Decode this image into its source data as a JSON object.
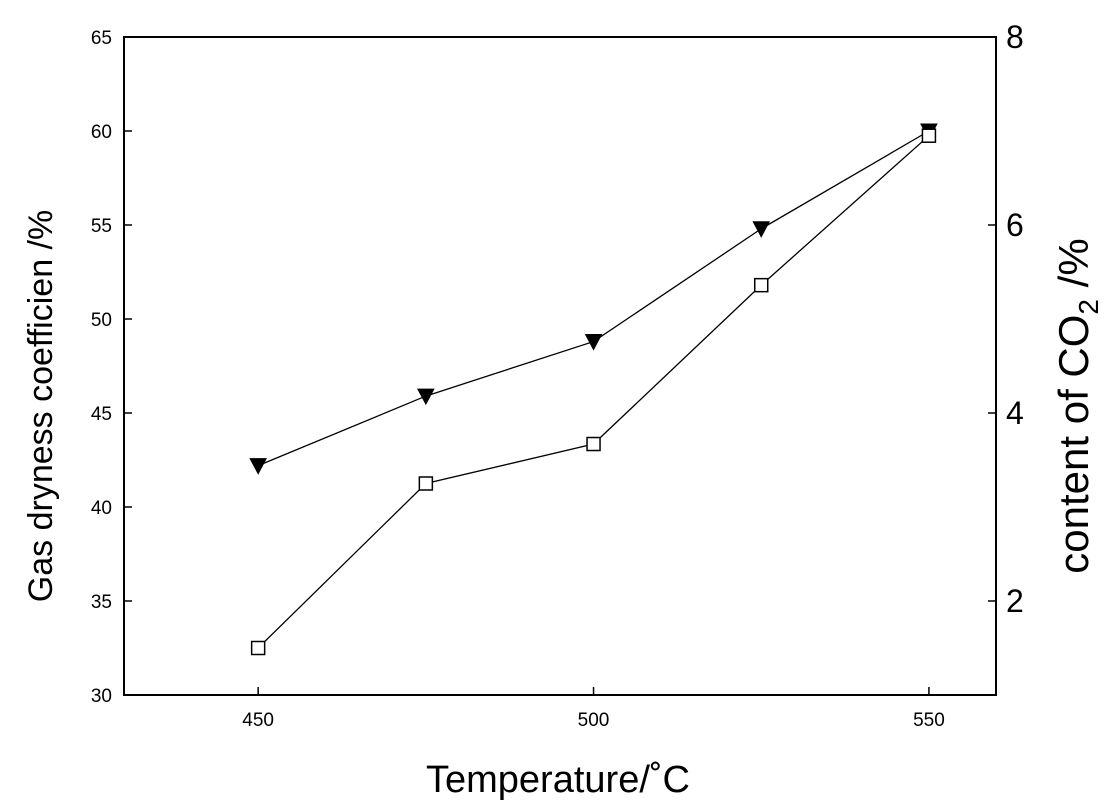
{
  "chart_data": {
    "type": "line",
    "title": "",
    "xlabel": "Temperature/˚C",
    "ylabel_left": "Gas dryness coefficien /%",
    "ylabel_right": {
      "prefix": "content of CO",
      "subscript": "2",
      "suffix": " /%"
    },
    "xlim": [
      430,
      560
    ],
    "ylim_left": [
      30,
      65
    ],
    "ylim_right": [
      1,
      8
    ],
    "x_ticks": [
      "450",
      "500",
      "550"
    ],
    "y_left_ticks": [
      "30",
      "35",
      "40",
      "45",
      "50",
      "55",
      "60",
      "65"
    ],
    "y_right_ticks": [
      "2",
      "4",
      "6",
      "8"
    ],
    "grid": false,
    "legend": "none",
    "series": [
      {
        "axis": "left",
        "marker": "filled-down-triangle",
        "color": "#000000",
        "x": [
          450,
          475,
          500,
          525,
          550
        ],
        "values": [
          42.2,
          45.9,
          48.8,
          54.8,
          60.0
        ]
      },
      {
        "axis": "right",
        "marker": "open-square",
        "color": "#000000",
        "x": [
          450,
          475,
          500,
          525,
          550
        ],
        "values": [
          1.5,
          3.25,
          3.67,
          5.36,
          6.95
        ]
      }
    ]
  }
}
